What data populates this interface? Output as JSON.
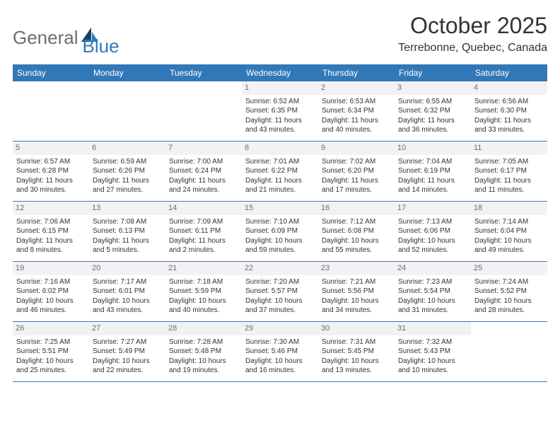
{
  "logo": {
    "text1": "General",
    "text2": "Blue"
  },
  "title": "October 2025",
  "location": "Terrebonne, Quebec, Canada",
  "weekday_bg": "#3178b9",
  "weekdays": [
    "Sunday",
    "Monday",
    "Tuesday",
    "Wednesday",
    "Thursday",
    "Friday",
    "Saturday"
  ],
  "first_weekday_index": 3,
  "days": [
    {
      "n": 1,
      "sunrise": "6:52 AM",
      "sunset": "6:35 PM",
      "daylight": "11 hours and 43 minutes."
    },
    {
      "n": 2,
      "sunrise": "6:53 AM",
      "sunset": "6:34 PM",
      "daylight": "11 hours and 40 minutes."
    },
    {
      "n": 3,
      "sunrise": "6:55 AM",
      "sunset": "6:32 PM",
      "daylight": "11 hours and 36 minutes."
    },
    {
      "n": 4,
      "sunrise": "6:56 AM",
      "sunset": "6:30 PM",
      "daylight": "11 hours and 33 minutes."
    },
    {
      "n": 5,
      "sunrise": "6:57 AM",
      "sunset": "6:28 PM",
      "daylight": "11 hours and 30 minutes."
    },
    {
      "n": 6,
      "sunrise": "6:59 AM",
      "sunset": "6:26 PM",
      "daylight": "11 hours and 27 minutes."
    },
    {
      "n": 7,
      "sunrise": "7:00 AM",
      "sunset": "6:24 PM",
      "daylight": "11 hours and 24 minutes."
    },
    {
      "n": 8,
      "sunrise": "7:01 AM",
      "sunset": "6:22 PM",
      "daylight": "11 hours and 21 minutes."
    },
    {
      "n": 9,
      "sunrise": "7:02 AM",
      "sunset": "6:20 PM",
      "daylight": "11 hours and 17 minutes."
    },
    {
      "n": 10,
      "sunrise": "7:04 AM",
      "sunset": "6:19 PM",
      "daylight": "11 hours and 14 minutes."
    },
    {
      "n": 11,
      "sunrise": "7:05 AM",
      "sunset": "6:17 PM",
      "daylight": "11 hours and 11 minutes."
    },
    {
      "n": 12,
      "sunrise": "7:06 AM",
      "sunset": "6:15 PM",
      "daylight": "11 hours and 8 minutes."
    },
    {
      "n": 13,
      "sunrise": "7:08 AM",
      "sunset": "6:13 PM",
      "daylight": "11 hours and 5 minutes."
    },
    {
      "n": 14,
      "sunrise": "7:09 AM",
      "sunset": "6:11 PM",
      "daylight": "11 hours and 2 minutes."
    },
    {
      "n": 15,
      "sunrise": "7:10 AM",
      "sunset": "6:09 PM",
      "daylight": "10 hours and 59 minutes."
    },
    {
      "n": 16,
      "sunrise": "7:12 AM",
      "sunset": "6:08 PM",
      "daylight": "10 hours and 55 minutes."
    },
    {
      "n": 17,
      "sunrise": "7:13 AM",
      "sunset": "6:06 PM",
      "daylight": "10 hours and 52 minutes."
    },
    {
      "n": 18,
      "sunrise": "7:14 AM",
      "sunset": "6:04 PM",
      "daylight": "10 hours and 49 minutes."
    },
    {
      "n": 19,
      "sunrise": "7:16 AM",
      "sunset": "6:02 PM",
      "daylight": "10 hours and 46 minutes."
    },
    {
      "n": 20,
      "sunrise": "7:17 AM",
      "sunset": "6:01 PM",
      "daylight": "10 hours and 43 minutes."
    },
    {
      "n": 21,
      "sunrise": "7:18 AM",
      "sunset": "5:59 PM",
      "daylight": "10 hours and 40 minutes."
    },
    {
      "n": 22,
      "sunrise": "7:20 AM",
      "sunset": "5:57 PM",
      "daylight": "10 hours and 37 minutes."
    },
    {
      "n": 23,
      "sunrise": "7:21 AM",
      "sunset": "5:56 PM",
      "daylight": "10 hours and 34 minutes."
    },
    {
      "n": 24,
      "sunrise": "7:23 AM",
      "sunset": "5:54 PM",
      "daylight": "10 hours and 31 minutes."
    },
    {
      "n": 25,
      "sunrise": "7:24 AM",
      "sunset": "5:52 PM",
      "daylight": "10 hours and 28 minutes."
    },
    {
      "n": 26,
      "sunrise": "7:25 AM",
      "sunset": "5:51 PM",
      "daylight": "10 hours and 25 minutes."
    },
    {
      "n": 27,
      "sunrise": "7:27 AM",
      "sunset": "5:49 PM",
      "daylight": "10 hours and 22 minutes."
    },
    {
      "n": 28,
      "sunrise": "7:28 AM",
      "sunset": "5:48 PM",
      "daylight": "10 hours and 19 minutes."
    },
    {
      "n": 29,
      "sunrise": "7:30 AM",
      "sunset": "5:46 PM",
      "daylight": "10 hours and 16 minutes."
    },
    {
      "n": 30,
      "sunrise": "7:31 AM",
      "sunset": "5:45 PM",
      "daylight": "10 hours and 13 minutes."
    },
    {
      "n": 31,
      "sunrise": "7:32 AM",
      "sunset": "5:43 PM",
      "daylight": "10 hours and 10 minutes."
    }
  ],
  "labels": {
    "sunrise": "Sunrise:",
    "sunset": "Sunset:",
    "daylight": "Daylight:"
  }
}
